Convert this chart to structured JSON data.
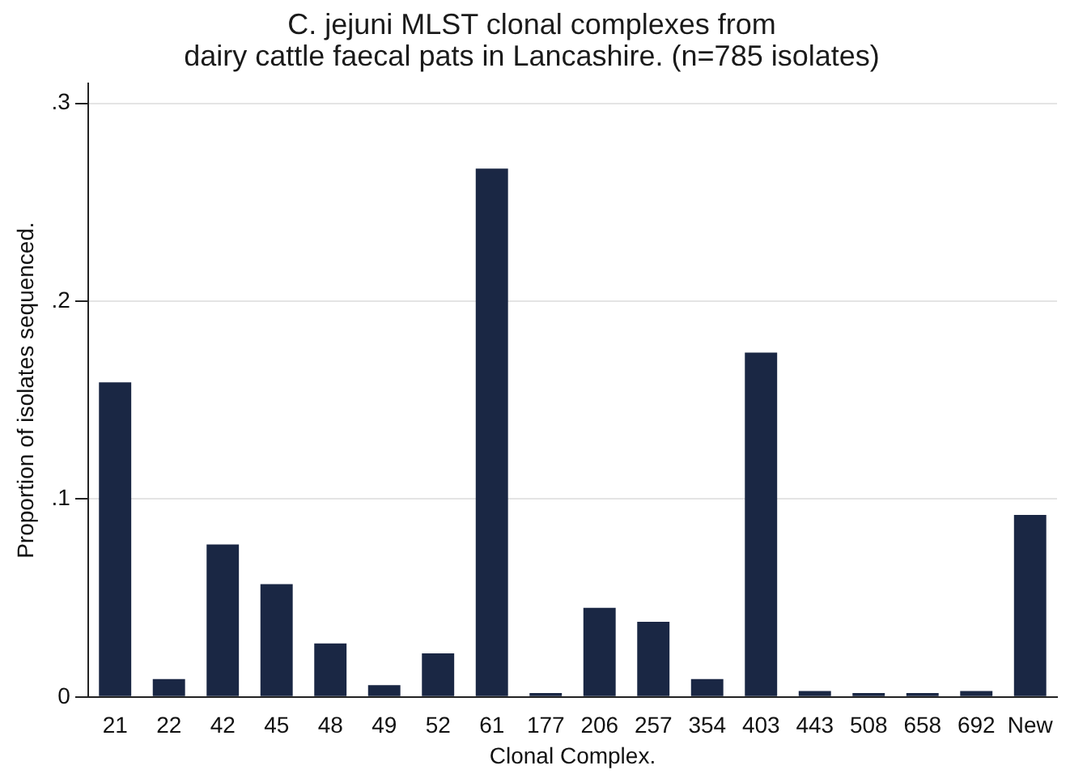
{
  "chart_data": {
    "type": "bar",
    "title": [
      "C. jejuni MLST clonal complexes from",
      "dairy cattle faecal pats in Lancashire. (n=785 isolates)"
    ],
    "xlabel": "Clonal Complex.",
    "ylabel": "Proportion of isolates sequenced.",
    "categories": [
      "21",
      "22",
      "42",
      "45",
      "48",
      "49",
      "52",
      "61",
      "177",
      "206",
      "257",
      "354",
      "403",
      "443",
      "508",
      "658",
      "692",
      "New"
    ],
    "values": [
      0.159,
      0.009,
      0.077,
      0.057,
      0.027,
      0.006,
      0.022,
      0.267,
      0.002,
      0.045,
      0.038,
      0.009,
      0.174,
      0.003,
      0.002,
      0.002,
      0.003,
      0.092
    ],
    "color": "#1a2744",
    "ylim": [
      0,
      0.31
    ],
    "yticks": [
      0,
      {
        "value": 0.1,
        "label": ".1"
      },
      {
        "value": 0.2,
        "label": ".2"
      },
      {
        "value": 0.3,
        "label": ".3"
      }
    ],
    "grid": "y"
  }
}
